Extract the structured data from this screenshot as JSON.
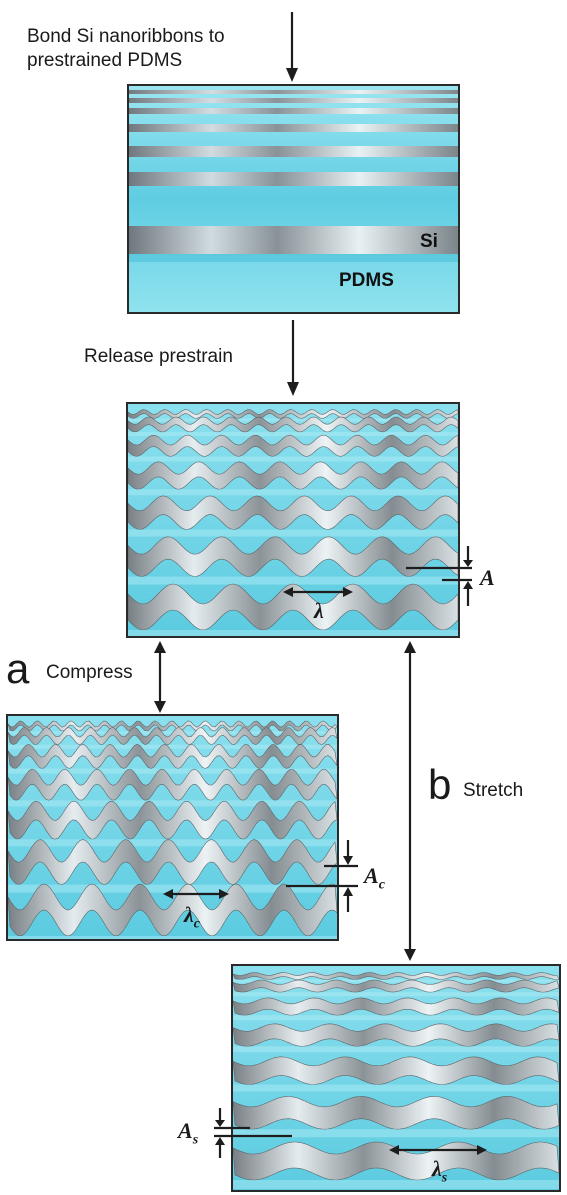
{
  "steps": {
    "bond": "Bond Si nanoribbons to\nprestrained PDMS",
    "release": "Release prestrain"
  },
  "panel_labels": {
    "si": "Si",
    "pdms": "PDMS"
  },
  "branch_a": {
    "letter": "a",
    "label": "Compress"
  },
  "branch_b": {
    "letter": "b",
    "label": "Stretch"
  },
  "symbols": {
    "wavelength": "λ",
    "amplitude": "A",
    "wavelength_c_base": "λ",
    "wavelength_c_sub": "c",
    "amplitude_c_base": "A",
    "amplitude_c_sub": "c",
    "wavelength_s_base": "λ",
    "wavelength_s_sub": "s",
    "amplitude_s_base": "A",
    "amplitude_s_sub": "s"
  },
  "colors": {
    "pdms": "#67d3e6",
    "pdms_light": "#a9ecf5",
    "silicon_dark": "#6f6f73",
    "silicon_light": "#eef0f2",
    "ink": "#1d1d1d"
  }
}
